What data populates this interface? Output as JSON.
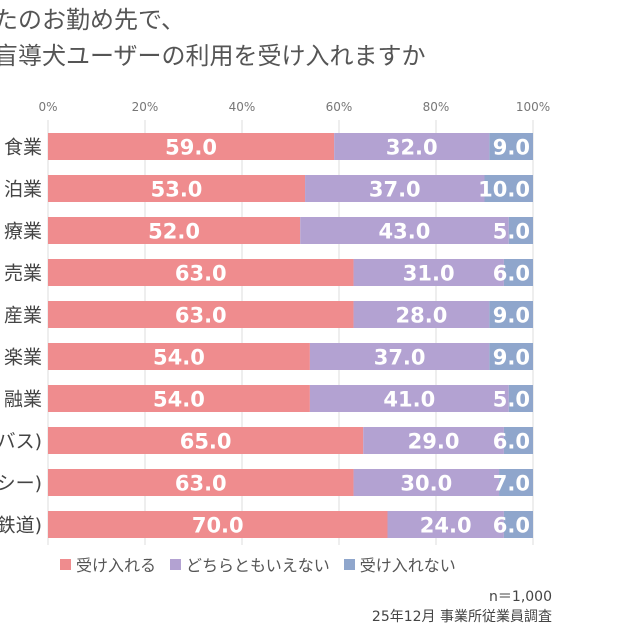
{
  "chart_data": {
    "type": "bar",
    "stacked": true,
    "orientation": "horizontal",
    "title_lines": [
      "たのお勤め先で、",
      "盲導犬ユーザーの利用を受け入れますか"
    ],
    "categories": [
      "食業",
      "泊業",
      "療業",
      "売業",
      "産業",
      "楽業",
      "融業",
      "バス)",
      "シー)",
      "鉄道)"
    ],
    "series": [
      {
        "name": "受け入れる",
        "color": "#ef8c8e",
        "values": [
          59.0,
          53.0,
          52.0,
          63.0,
          63.0,
          54.0,
          54.0,
          65.0,
          63.0,
          70.0
        ]
      },
      {
        "name": "どちらともいえない",
        "color": "#b3a2d2",
        "values": [
          32.0,
          37.0,
          43.0,
          31.0,
          28.0,
          37.0,
          41.0,
          29.0,
          30.0,
          24.0
        ]
      },
      {
        "name": "受け入れない",
        "color": "#8fa6cc",
        "values": [
          9.0,
          10.0,
          5.0,
          6.0,
          9.0,
          9.0,
          5.0,
          6.0,
          7.0,
          6.0
        ]
      }
    ],
    "xlim": [
      0,
      100
    ],
    "x_ticks": [
      "0%",
      "20%",
      "40%",
      "60%",
      "80%",
      "100%"
    ],
    "grid": true,
    "legend_position": "bottom"
  },
  "notes": {
    "sample": "n＝1,000",
    "source": "25年12月 事業所従業員調査"
  }
}
